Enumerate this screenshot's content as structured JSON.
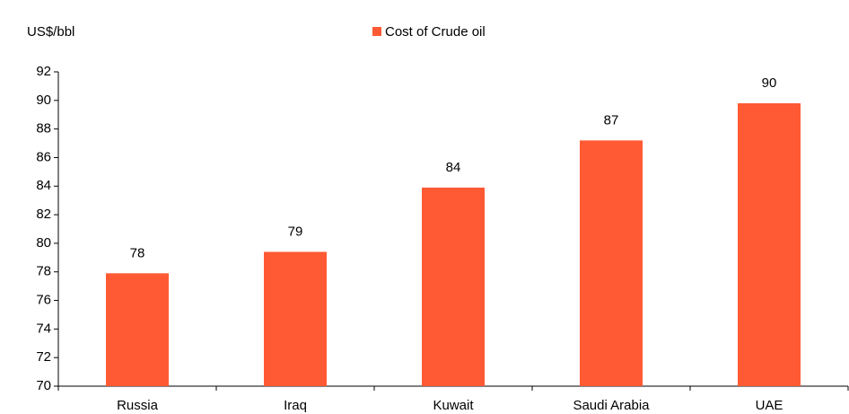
{
  "chart_data": {
    "type": "bar",
    "y_label": "US$/bbl",
    "categories": [
      "Russia",
      "Iraq",
      "Kuwait",
      "Saudi Arabia",
      "UAE"
    ],
    "series": [
      {
        "name": "Cost of Crude oil",
        "color": "#ff5a33",
        "values": [
          77.9,
          79.4,
          83.9,
          87.2,
          89.8
        ],
        "value_labels": [
          "78",
          "79",
          "84",
          "87",
          "90"
        ]
      }
    ],
    "ylim": [
      70,
      92
    ],
    "yticks": [
      70,
      72,
      74,
      76,
      78,
      80,
      82,
      84,
      86,
      88,
      90,
      92
    ],
    "grid": false,
    "legend": "top"
  }
}
